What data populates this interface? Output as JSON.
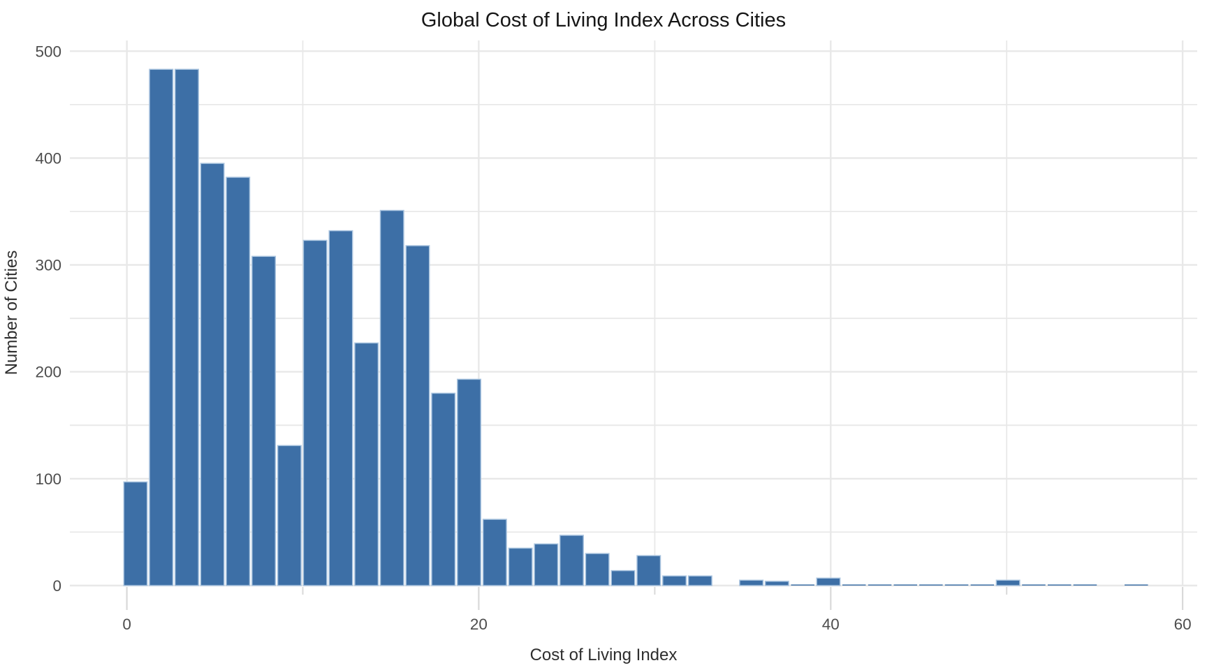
{
  "chart_data": {
    "type": "bar",
    "subtype": "histogram",
    "title": "Global Cost of Living Index Across Cities",
    "xlabel": "Cost of Living Index",
    "ylabel": "Number of Cities",
    "legend": null,
    "axes": {
      "xlim": [
        -3.24,
        60.83
      ],
      "ylim": [
        0,
        510
      ],
      "x_ticks": [
        0,
        20,
        40,
        60
      ],
      "x_minor_ticks": [
        10,
        30,
        50
      ],
      "y_ticks": [
        0,
        100,
        200,
        300,
        400,
        500
      ],
      "y_minor_ticks": [
        50,
        150,
        250,
        350,
        450
      ],
      "grid": true,
      "legend_position": "none"
    },
    "bin_width": 1.4587,
    "bins": [
      {
        "x": -0.24,
        "count": 97
      },
      {
        "x": 1.22,
        "count": 483
      },
      {
        "x": 2.68,
        "count": 483
      },
      {
        "x": 4.13,
        "count": 395
      },
      {
        "x": 5.59,
        "count": 382
      },
      {
        "x": 7.05,
        "count": 308
      },
      {
        "x": 8.51,
        "count": 131
      },
      {
        "x": 9.97,
        "count": 323
      },
      {
        "x": 11.43,
        "count": 332
      },
      {
        "x": 12.89,
        "count": 227
      },
      {
        "x": 14.34,
        "count": 351
      },
      {
        "x": 15.8,
        "count": 318
      },
      {
        "x": 17.26,
        "count": 180
      },
      {
        "x": 18.72,
        "count": 193
      },
      {
        "x": 20.18,
        "count": 62
      },
      {
        "x": 21.64,
        "count": 35
      },
      {
        "x": 23.1,
        "count": 39
      },
      {
        "x": 24.55,
        "count": 47
      },
      {
        "x": 26.01,
        "count": 30
      },
      {
        "x": 27.47,
        "count": 14
      },
      {
        "x": 28.93,
        "count": 28
      },
      {
        "x": 30.39,
        "count": 9
      },
      {
        "x": 31.85,
        "count": 9
      },
      {
        "x": 33.31,
        "count": 0
      },
      {
        "x": 34.76,
        "count": 5
      },
      {
        "x": 36.22,
        "count": 4
      },
      {
        "x": 37.68,
        "count": 1
      },
      {
        "x": 39.14,
        "count": 7
      },
      {
        "x": 40.6,
        "count": 1
      },
      {
        "x": 42.06,
        "count": 1
      },
      {
        "x": 43.52,
        "count": 1
      },
      {
        "x": 44.97,
        "count": 1
      },
      {
        "x": 46.43,
        "count": 1
      },
      {
        "x": 47.89,
        "count": 1
      },
      {
        "x": 49.35,
        "count": 5
      },
      {
        "x": 50.81,
        "count": 1
      },
      {
        "x": 52.27,
        "count": 1
      },
      {
        "x": 53.73,
        "count": 1
      },
      {
        "x": 55.18,
        "count": 0
      },
      {
        "x": 56.64,
        "count": 1
      }
    ],
    "style": {
      "bar_color": "#3d6fa6",
      "bar_edge_color": "#a9c4df",
      "grid_color": "#e8e8e8",
      "tick_mark_color": "#d9d9d9",
      "tick_label_color": "#4d4d4d",
      "axis_label_color": "#2e2e2e",
      "title_color": "#161616",
      "background": "#ffffff"
    }
  }
}
